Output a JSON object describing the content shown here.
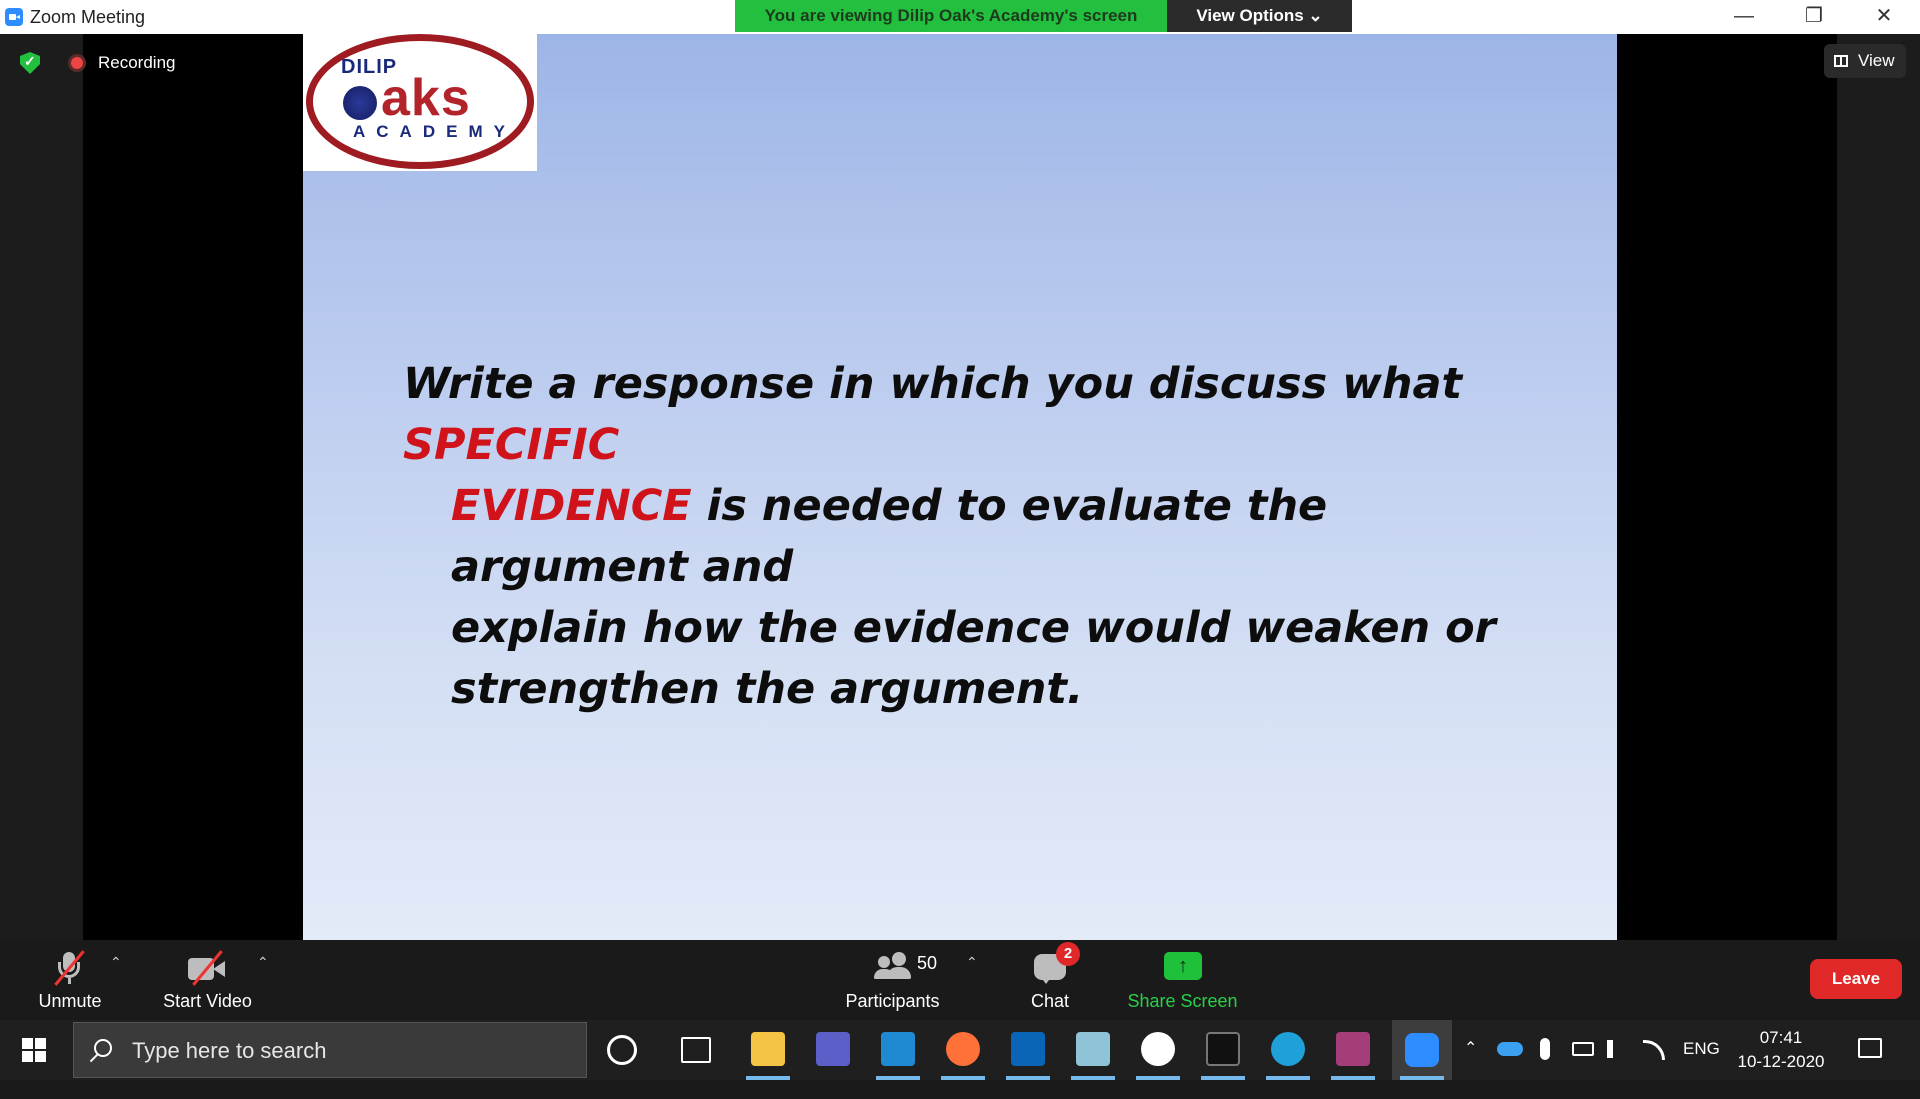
{
  "window": {
    "title": "Zoom Meeting",
    "banner": "You are viewing Dilip Oak's Academy's screen",
    "view_options": "View Options ⌄",
    "min": "—",
    "max": "❐",
    "close": "✕"
  },
  "meeting": {
    "recording_label": "Recording",
    "view_label": "View"
  },
  "slide": {
    "logo": {
      "top": "DILIP",
      "main": "aks",
      "bottom": "ACADEMY"
    },
    "text": {
      "l1_a": "Write a response in which you discuss what ",
      "l1_red": "SPECIFIC",
      "l2_red": "EVIDENCE",
      "l2_b": " is needed to evaluate the argument and",
      "l3": "explain how the evidence would weaken or",
      "l4": "strengthen the argument."
    }
  },
  "controls": {
    "unmute": "Unmute",
    "start_video": "Start Video",
    "participants_count": "50",
    "participants": "Participants",
    "chat": "Chat",
    "chat_badge": "2",
    "share_screen": "Share Screen",
    "share_arrow": "↑",
    "leave": "Leave",
    "caret": "⌃"
  },
  "taskbar": {
    "search_placeholder": "Type here to search",
    "lang": "ENG",
    "time": "07:41",
    "date": "10-12-2020"
  },
  "colors": {
    "banner_green": "#23c040",
    "leave_red": "#e02828",
    "slide_red": "#d0121b",
    "share_green": "#1fc13b"
  }
}
